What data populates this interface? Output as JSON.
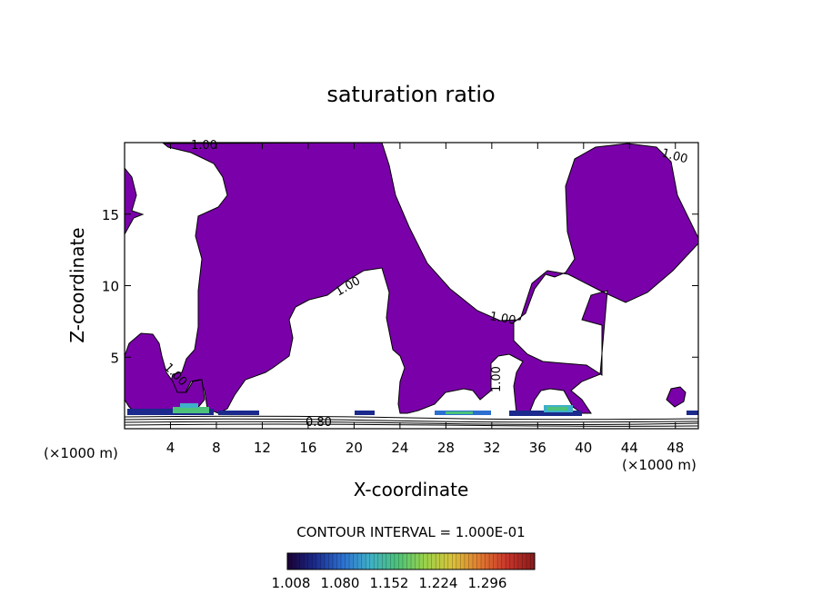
{
  "chart_data": {
    "type": "contour",
    "title": "saturation ratio",
    "xlabel": "X-coordinate",
    "ylabel": "Z-coordinate",
    "x_units_left": "(×1000 m)",
    "x_units_right": "(×1000 m)",
    "xlim": [
      0,
      50
    ],
    "ylim": [
      0,
      20
    ],
    "x_ticks": [
      4,
      8,
      12,
      16,
      20,
      24,
      28,
      32,
      36,
      40,
      44,
      48
    ],
    "y_ticks": [
      5,
      10,
      15
    ],
    "contour_interval_text": "CONTOUR INTERVAL = 1.000E-01",
    "contour_labels": [
      "1.00",
      "1.00",
      "1.00",
      "1.00",
      "1.00",
      "1.00",
      "0.80"
    ],
    "colorbar": {
      "tick_labels": [
        "1.008",
        "1.080",
        "1.152",
        "1.224",
        "1.296"
      ],
      "colors": [
        "#1a0033",
        "#1b2a8c",
        "#2c6fd0",
        "#3fb0c8",
        "#4cc27a",
        "#9ad24a",
        "#d9c23a",
        "#e07a30",
        "#c8342a",
        "#8a1a1a"
      ]
    },
    "fill_color": "#7a00aa",
    "grid": false
  }
}
